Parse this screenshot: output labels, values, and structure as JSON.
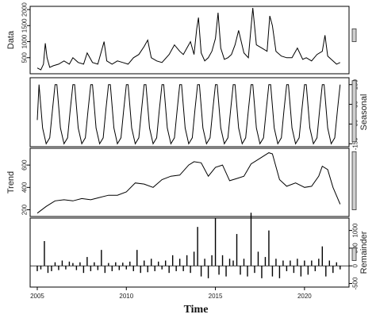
{
  "chart_data": {
    "type": "line",
    "title": "",
    "xlabel": "Time",
    "xlim": [
      2004.6,
      2022.5
    ],
    "x_ticks": [
      "2005",
      "2010",
      "2015",
      "2020"
    ],
    "x_tick_values": [
      2005,
      2010,
      2015,
      2020
    ],
    "panels": [
      {
        "name": "Data",
        "ylabel": "Data",
        "ylim": [
          0,
          2100
        ],
        "y_ticks": [
          "500",
          "1000",
          "1500",
          "2000"
        ],
        "y_tick_values": [
          500,
          1000,
          1500,
          2000
        ],
        "tick_side": "left",
        "scale_bar": [
          1000,
          1400
        ],
        "style": "line",
        "x": [
          2005.0,
          2005.2,
          2005.35,
          2005.45,
          2005.55,
          2005.7,
          2005.9,
          2006.2,
          2006.5,
          2006.8,
          2007.0,
          2007.3,
          2007.6,
          2007.8,
          2008.1,
          2008.4,
          2008.6,
          2008.75,
          2008.9,
          2009.2,
          2009.5,
          2009.8,
          2010.1,
          2010.4,
          2010.7,
          2011.0,
          2011.2,
          2011.4,
          2011.7,
          2012.0,
          2012.4,
          2012.7,
          2013.0,
          2013.2,
          2013.4,
          2013.6,
          2013.8,
          2013.95,
          2014.05,
          2014.2,
          2014.4,
          2014.6,
          2014.8,
          2015.0,
          2015.15,
          2015.3,
          2015.5,
          2015.7,
          2015.9,
          2016.1,
          2016.3,
          2016.6,
          2016.85,
          2017.0,
          2017.1,
          2017.3,
          2017.6,
          2017.9,
          2018.05,
          2018.2,
          2018.4,
          2018.7,
          2019.0,
          2019.3,
          2019.6,
          2019.9,
          2020.1,
          2020.4,
          2020.7,
          2021.0,
          2021.15,
          2021.3,
          2021.5,
          2021.8,
          2022.0
        ],
        "y": [
          180,
          120,
          300,
          950,
          500,
          200,
          250,
          300,
          400,
          300,
          500,
          350,
          300,
          650,
          350,
          300,
          700,
          1000,
          400,
          300,
          400,
          350,
          300,
          500,
          600,
          850,
          1050,
          500,
          400,
          350,
          600,
          900,
          700,
          600,
          800,
          1000,
          600,
          1400,
          1750,
          650,
          400,
          500,
          700,
          1100,
          1900,
          800,
          450,
          500,
          600,
          900,
          1350,
          650,
          500,
          1450,
          2050,
          900,
          800,
          700,
          1800,
          1500,
          700,
          550,
          500,
          500,
          800,
          450,
          500,
          400,
          600,
          700,
          1200,
          550,
          450,
          300,
          350
        ]
      },
      {
        "name": "Seasonal",
        "ylabel": "Seasonal",
        "ylim": [
          -165,
          185
        ],
        "y_ticks": [
          "-150",
          "-50",
          "50",
          "150"
        ],
        "y_tick_values": [
          -150,
          -50,
          50,
          150
        ],
        "tick_side": "right",
        "scale_bar": [
          -140,
          170
        ],
        "style": "line",
        "x": [
          2005.0,
          2005.1,
          2005.3,
          2005.5,
          2005.7,
          2005.85,
          2006.0,
          2006.1,
          2006.3,
          2006.5,
          2006.7,
          2006.85,
          2007.0,
          2007.1,
          2007.3,
          2007.5,
          2007.7,
          2007.85,
          2008.0,
          2008.1,
          2008.3,
          2008.5,
          2008.7,
          2008.85,
          2009.0,
          2009.1,
          2009.3,
          2009.5,
          2009.7,
          2009.85,
          2010.0,
          2010.1,
          2010.3,
          2010.5,
          2010.7,
          2010.85,
          2011.0,
          2011.1,
          2011.3,
          2011.5,
          2011.7,
          2011.85,
          2012.0,
          2012.1,
          2012.3,
          2012.5,
          2012.7,
          2012.85,
          2013.0,
          2013.1,
          2013.3,
          2013.5,
          2013.7,
          2013.85,
          2014.0,
          2014.1,
          2014.3,
          2014.5,
          2014.7,
          2014.85,
          2015.0,
          2015.1,
          2015.3,
          2015.5,
          2015.7,
          2015.85,
          2016.0,
          2016.1,
          2016.3,
          2016.5,
          2016.7,
          2016.85,
          2017.0,
          2017.1,
          2017.3,
          2017.5,
          2017.7,
          2017.85,
          2018.0,
          2018.1,
          2018.3,
          2018.5,
          2018.7,
          2018.85,
          2019.0,
          2019.1,
          2019.3,
          2019.5,
          2019.7,
          2019.85,
          2020.0,
          2020.1,
          2020.3,
          2020.5,
          2020.7,
          2020.85,
          2021.0,
          2021.1,
          2021.3,
          2021.5,
          2021.7,
          2021.85,
          2022.0
        ],
        "y": [
          -30,
          150,
          -70,
          -150,
          -120,
          20,
          150,
          150,
          -70,
          -150,
          -120,
          20,
          150,
          150,
          -70,
          -150,
          -120,
          20,
          150,
          150,
          -70,
          -150,
          -120,
          20,
          150,
          150,
          -70,
          -150,
          -120,
          20,
          150,
          150,
          -70,
          -150,
          -120,
          20,
          150,
          150,
          -70,
          -150,
          -120,
          20,
          150,
          150,
          -70,
          -150,
          -120,
          20,
          150,
          150,
          -70,
          -150,
          -120,
          20,
          150,
          150,
          -70,
          -150,
          -120,
          20,
          150,
          150,
          -70,
          -150,
          -120,
          20,
          150,
          150,
          -70,
          -150,
          -120,
          20,
          150,
          150,
          -70,
          -150,
          -120,
          20,
          150,
          150,
          -70,
          -150,
          -120,
          20,
          150,
          150,
          -70,
          -150,
          -120,
          20,
          150,
          150,
          -70,
          -150,
          -120,
          20,
          150,
          150,
          -70,
          -150,
          -120,
          20,
          150
        ]
      },
      {
        "name": "Trend",
        "ylabel": "Trend",
        "ylim": [
          140,
          750
        ],
        "y_ticks": [
          "200",
          "400",
          "600"
        ],
        "y_tick_values": [
          200,
          400,
          600
        ],
        "tick_side": "left",
        "scale_bar": [
          200,
          720
        ],
        "style": "line",
        "x": [
          2005.0,
          2005.5,
          2006.0,
          2006.5,
          2007.0,
          2007.5,
          2008.0,
          2008.5,
          2009.0,
          2009.5,
          2010.0,
          2010.5,
          2011.0,
          2011.5,
          2012.0,
          2012.5,
          2013.0,
          2013.5,
          2013.8,
          2014.2,
          2014.6,
          2015.0,
          2015.4,
          2015.8,
          2016.2,
          2016.6,
          2017.0,
          2017.5,
          2018.0,
          2018.2,
          2018.6,
          2019.0,
          2019.5,
          2020.0,
          2020.4,
          2020.8,
          2021.0,
          2021.3,
          2021.6,
          2022.0
        ],
        "y": [
          170,
          230,
          280,
          290,
          280,
          300,
          290,
          310,
          330,
          330,
          360,
          440,
          430,
          400,
          470,
          500,
          510,
          600,
          630,
          620,
          500,
          580,
          600,
          460,
          480,
          500,
          610,
          660,
          710,
          700,
          470,
          410,
          440,
          400,
          410,
          500,
          590,
          560,
          400,
          250
        ]
      },
      {
        "name": "Remainder",
        "ylabel": "Remainder",
        "ylim": [
          -600,
          1350
        ],
        "y_ticks": [
          "-500",
          "0",
          "500",
          "1000"
        ],
        "y_tick_values": [
          -500,
          0,
          500,
          1000
        ],
        "tick_side": "right",
        "scale_bar": [
          150,
          500
        ],
        "style": "bars",
        "baseline": 0,
        "x": [
          2005.0,
          2005.2,
          2005.4,
          2005.6,
          2005.8,
          2006.0,
          2006.2,
          2006.4,
          2006.6,
          2006.8,
          2007.0,
          2007.2,
          2007.4,
          2007.6,
          2007.8,
          2008.0,
          2008.2,
          2008.4,
          2008.6,
          2008.8,
          2009.0,
          2009.2,
          2009.4,
          2009.6,
          2009.8,
          2010.0,
          2010.2,
          2010.4,
          2010.6,
          2010.8,
          2011.0,
          2011.2,
          2011.4,
          2011.6,
          2011.8,
          2012.0,
          2012.2,
          2012.4,
          2012.6,
          2012.8,
          2013.0,
          2013.2,
          2013.4,
          2013.6,
          2013.8,
          2014.0,
          2014.2,
          2014.4,
          2014.6,
          2014.8,
          2015.0,
          2015.2,
          2015.4,
          2015.6,
          2015.8,
          2016.0,
          2016.2,
          2016.4,
          2016.6,
          2016.8,
          2017.0,
          2017.2,
          2017.4,
          2017.6,
          2017.8,
          2018.0,
          2018.2,
          2018.4,
          2018.6,
          2018.8,
          2019.0,
          2019.2,
          2019.4,
          2019.6,
          2019.8,
          2020.0,
          2020.2,
          2020.4,
          2020.6,
          2020.8,
          2021.0,
          2021.2,
          2021.4,
          2021.6,
          2021.8,
          2022.0
        ],
        "y": [
          -150,
          -100,
          700,
          -200,
          -150,
          100,
          -120,
          150,
          -100,
          120,
          80,
          -120,
          100,
          -200,
          250,
          -150,
          100,
          -120,
          450,
          -200,
          80,
          -150,
          100,
          -120,
          90,
          -100,
          120,
          -150,
          450,
          -200,
          150,
          -180,
          200,
          -150,
          120,
          -100,
          150,
          -200,
          300,
          -150,
          200,
          -150,
          300,
          -200,
          400,
          1100,
          -300,
          200,
          -350,
          300,
          1350,
          -250,
          300,
          -300,
          200,
          150,
          900,
          -250,
          200,
          -300,
          1500,
          -200,
          400,
          -350,
          250,
          1000,
          -300,
          200,
          -350,
          150,
          -150,
          150,
          -200,
          200,
          -300,
          150,
          -250,
          150,
          -150,
          200,
          550,
          -300,
          150,
          -200,
          100,
          -100
        ]
      }
    ]
  }
}
